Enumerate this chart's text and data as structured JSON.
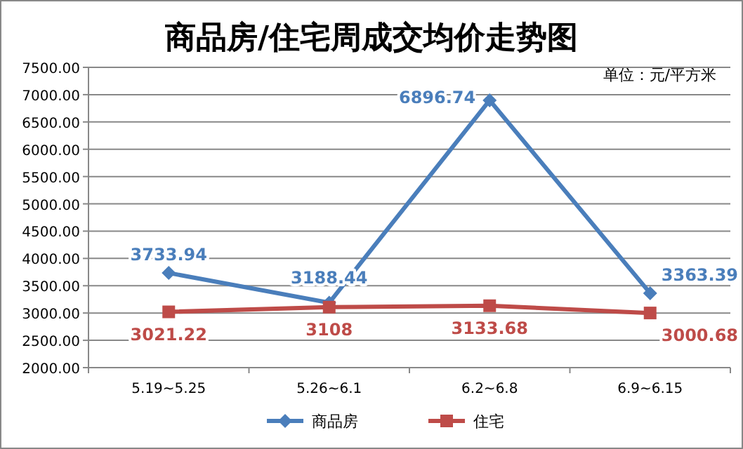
{
  "chart_data": {
    "type": "line",
    "title": "商品房/住宅周成交均价走势图",
    "annotations": [
      "单位：元/平方米"
    ],
    "categories": [
      "5.19~5.25",
      "5.26~6.1",
      "6.2~6.8",
      "6.9~6.15"
    ],
    "series": [
      {
        "name": "商品房",
        "color": "#4a7ebb",
        "marker": "diamond",
        "values": [
          3733.94,
          3188.44,
          6896.74,
          3363.39
        ]
      },
      {
        "name": "住宅",
        "color": "#be4b48",
        "marker": "square",
        "values": [
          3021.22,
          3108,
          3133.68,
          3000.68
        ]
      }
    ],
    "ylim": [
      2000,
      7500
    ],
    "yticks": [
      {
        "value": 2000,
        "label": "2000.00"
      },
      {
        "value": 2500,
        "label": "2500.00"
      },
      {
        "value": 3000,
        "label": "3000.00"
      },
      {
        "value": 3500,
        "label": "3500.00"
      },
      {
        "value": 4000,
        "label": "4000.00"
      },
      {
        "value": 4500,
        "label": "4500.00"
      },
      {
        "value": 5000,
        "label": "5000.00"
      },
      {
        "value": 5500,
        "label": "5500.00"
      },
      {
        "value": 6000,
        "label": "6000.00"
      },
      {
        "value": 6500,
        "label": "6500.00"
      },
      {
        "value": 7000,
        "label": "7000.00"
      },
      {
        "value": 7500,
        "label": "7500.00"
      }
    ],
    "grid": "y",
    "legend": "bottom",
    "data_labels": true
  }
}
